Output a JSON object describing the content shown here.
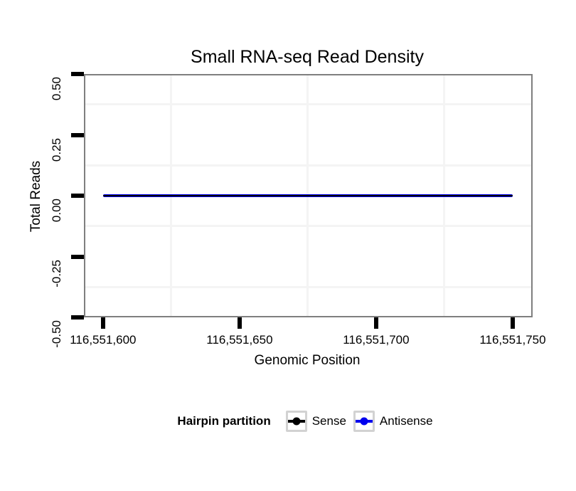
{
  "chart_data": {
    "type": "line",
    "title": "Small RNA-seq Read Density",
    "xlabel": "Genomic Position",
    "ylabel": "Total Reads",
    "xlim": [
      116551593,
      116551757.3
    ],
    "ylim": [
      -0.5,
      0.5
    ],
    "x_ticks": [
      {
        "value": 116551600,
        "label": "116,551,600"
      },
      {
        "value": 116551650,
        "label": "116,551,650"
      },
      {
        "value": 116551700,
        "label": "116,551,700"
      },
      {
        "value": 116551750,
        "label": "116,551,750"
      }
    ],
    "y_ticks": [
      {
        "value": 0.5,
        "label": "0.50"
      },
      {
        "value": 0.25,
        "label": "0.25"
      },
      {
        "value": 0.0,
        "label": "0.00"
      },
      {
        "value": -0.25,
        "label": "-0.25"
      },
      {
        "value": -0.5,
        "label": "-0.50"
      }
    ],
    "x_minor_gridlines": [
      116551625,
      116551675,
      116551725
    ],
    "y_minor_gridlines": [
      0.375,
      0.125,
      -0.125,
      -0.375
    ],
    "grid": "minor-only",
    "legend_position": "bottom",
    "series": [
      {
        "name": "Sense",
        "color": "#000000",
        "x": [
          116551600,
          116551750
        ],
        "y": [
          0,
          0
        ]
      },
      {
        "name": "Antisense",
        "color": "#0000ee",
        "x": [
          116551600,
          116551750
        ],
        "y": [
          0,
          0
        ]
      }
    ],
    "legend": {
      "title": "Hairpin partition",
      "entries": [
        {
          "label": "Sense",
          "color": "#000000"
        },
        {
          "label": "Antisense",
          "color": "#0000ee"
        }
      ]
    }
  },
  "colors": {
    "panel_border": "#7f7f7f",
    "minor_gridline": "#f4f4f4",
    "tick": "#000000",
    "legend_key_border": "#d2d2d2"
  }
}
